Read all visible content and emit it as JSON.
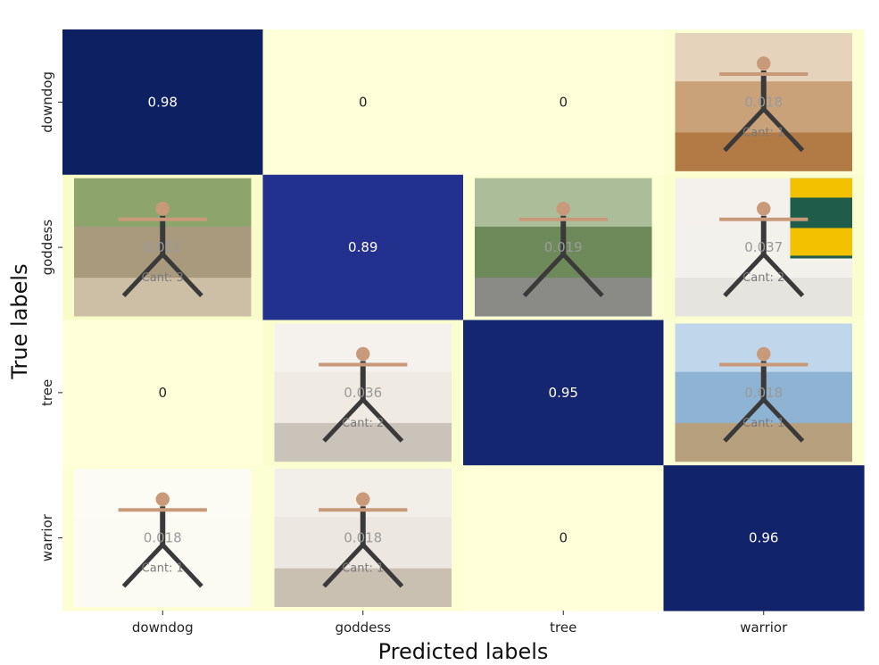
{
  "chart_data": {
    "type": "heatmap",
    "title": "",
    "xlabel": "Predicted labels",
    "ylabel": "True labels",
    "x_categories": [
      "downdog",
      "goddess",
      "tree",
      "warrior"
    ],
    "y_categories": [
      "downdog",
      "goddess",
      "tree",
      "warrior"
    ],
    "values": [
      [
        0.98,
        0,
        0,
        0.018
      ],
      [
        0.051,
        0.89,
        0.019,
        0.037
      ],
      [
        0,
        0.036,
        0.95,
        0.018
      ],
      [
        0.018,
        0.018,
        0,
        0.96
      ]
    ],
    "value_labels": [
      [
        "0.98",
        "0",
        "0",
        "0.018"
      ],
      [
        "0.051",
        "0.89",
        "0.019",
        "0.037"
      ],
      [
        "0",
        "0.036",
        "0.95",
        "0.018"
      ],
      [
        "0.018",
        "0.018",
        "0",
        "0.96"
      ]
    ],
    "counts": [
      [
        "",
        "",
        "",
        "Cant: 1"
      ],
      [
        "Cant: 3",
        "",
        "",
        "Cant: 2"
      ],
      [
        "",
        "Cant: 2",
        "",
        "Cant: 1"
      ],
      [
        "Cant: 1",
        "Cant: 1",
        "",
        ""
      ]
    ],
    "colormap": "YlGnBu",
    "vmin": 0,
    "vmax": 1,
    "colorbar": false,
    "cell_thumbnails": [
      [
        null,
        null,
        null,
        "downdog-pose-photo"
      ],
      [
        "goddess-pose-outdoor-photo",
        null,
        "goddess-pose-indoor-photo",
        "goddess-pose-tutorial-photo"
      ],
      [
        null,
        "tree-pose-indoor-photo",
        null,
        "tree-pose-beach-photo"
      ],
      [
        "warrior-pose-illustration",
        "warrior-pose-studio-photo",
        null,
        null
      ]
    ]
  }
}
